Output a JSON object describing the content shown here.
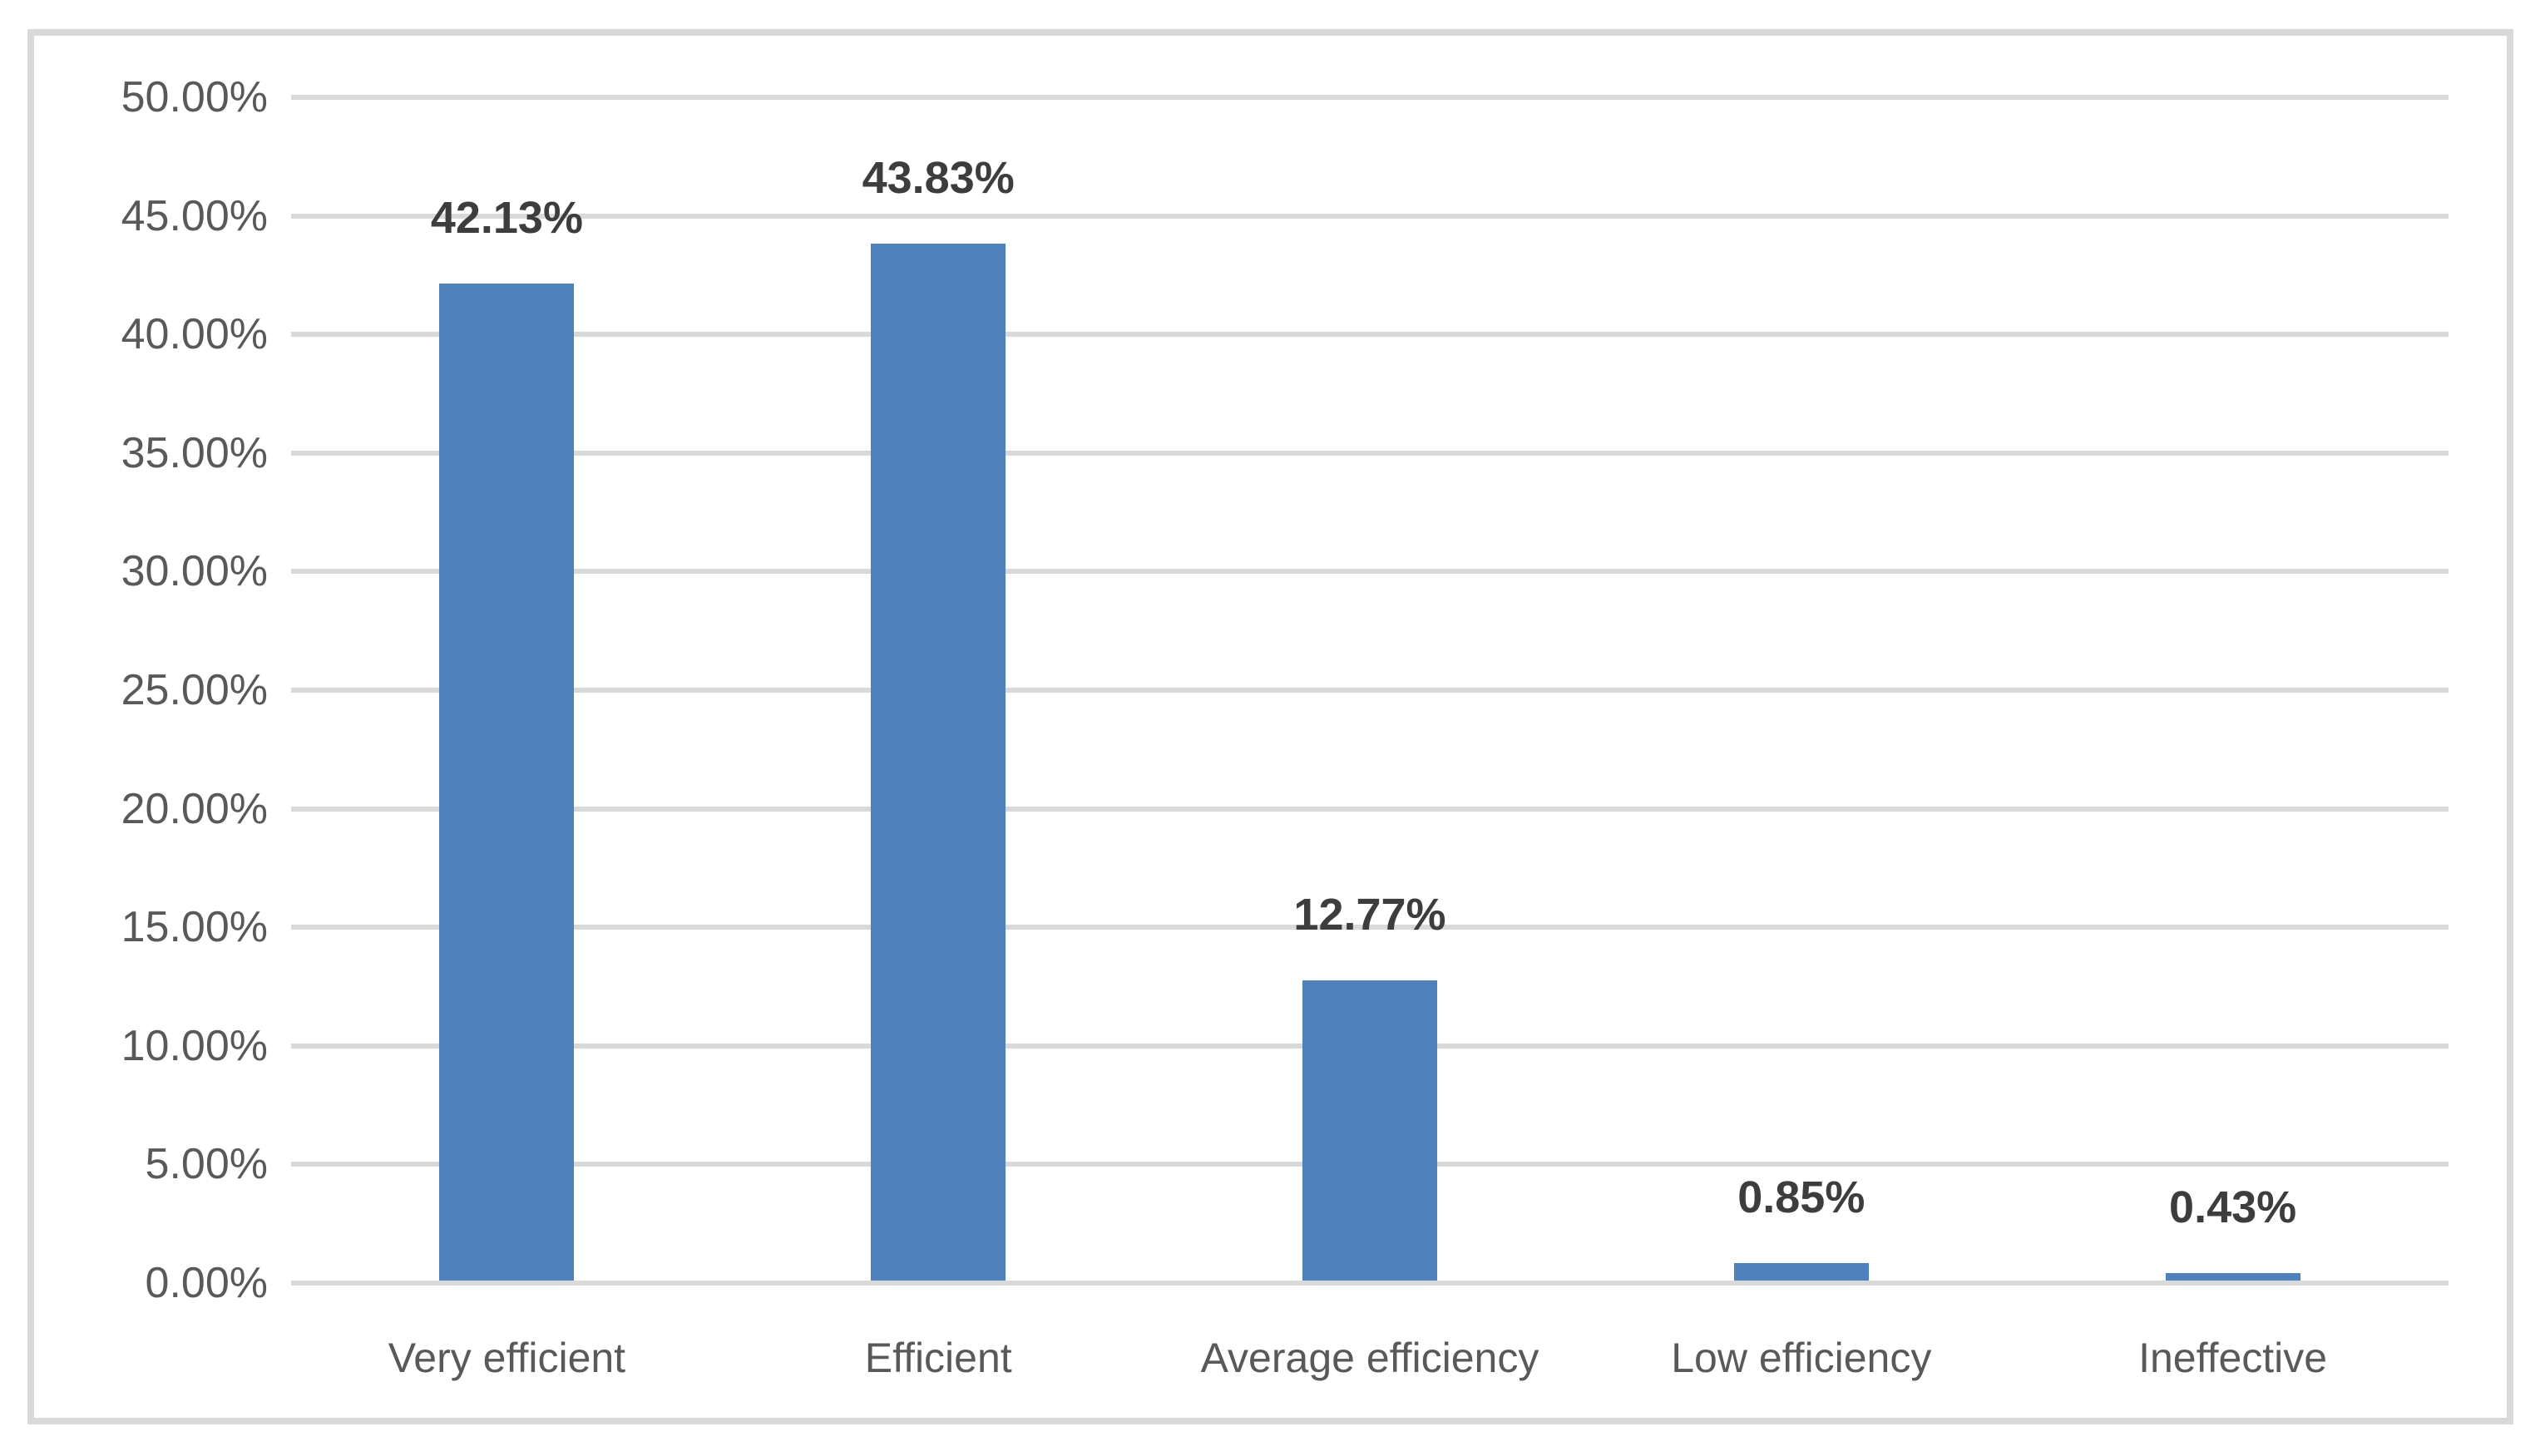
{
  "figure": {
    "title": "",
    "background_color": "#ffffff",
    "frame_border_color": "#d9d9d9"
  },
  "chart_data": {
    "type": "bar",
    "title": "",
    "xlabel": "",
    "ylabel": "",
    "categories": [
      "Very efficient",
      "Efficient",
      "Average efficiency",
      "Low efficiency",
      "Ineffective"
    ],
    "values": [
      42.13,
      43.83,
      12.77,
      0.85,
      0.43
    ],
    "value_labels": [
      "42.13%",
      "43.83%",
      "12.77%",
      "0.85%",
      "0.43%"
    ],
    "ylim": [
      0,
      50
    ],
    "ytick_step": 5,
    "ytick_labels": [
      "0.00%",
      "5.00%",
      "10.00%",
      "15.00%",
      "20.00%",
      "25.00%",
      "30.00%",
      "35.00%",
      "40.00%",
      "45.00%",
      "50.00%"
    ],
    "grid": true,
    "legend": false,
    "bar_color": "#4f81bd",
    "gridline_color": "#d9d9d9",
    "axis_line_color": "#d9d9d9",
    "tick_label_color": "#595959",
    "category_label_color": "#595959",
    "data_label_color": "#3d3d3d"
  }
}
